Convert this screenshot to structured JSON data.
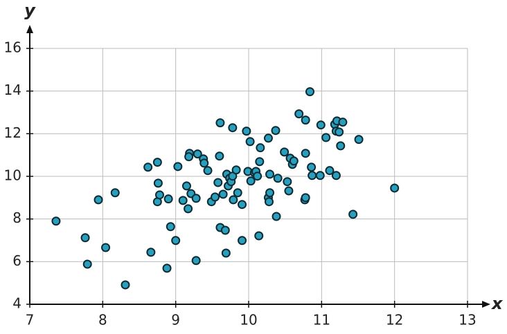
{
  "chart_data": {
    "type": "scatter",
    "x_label": "x",
    "y_label": "y",
    "xlim": [
      7,
      13
    ],
    "ylim": [
      4,
      16
    ],
    "xticks": [
      7,
      8,
      9,
      10,
      11,
      12,
      13
    ],
    "yticks": [
      4,
      6,
      8,
      10,
      12,
      14,
      16
    ],
    "grid": true,
    "color": "#2a9fbd",
    "x": [
      7.36,
      7.76,
      7.79,
      7.94,
      8.04,
      8.17,
      8.31,
      8.62,
      8.66,
      8.75,
      8.76,
      8.75,
      8.78,
      8.88,
      8.9,
      8.93,
      9.0,
      9.03,
      9.1,
      9.15,
      9.17,
      9.19,
      9.18,
      9.21,
      9.28,
      9.28,
      9.3,
      9.38,
      9.39,
      9.44,
      9.49,
      9.54,
      9.58,
      9.6,
      9.61,
      9.61,
      9.65,
      9.68,
      9.69,
      9.7,
      9.72,
      9.74,
      9.76,
      9.78,
      9.78,
      9.79,
      9.83,
      9.85,
      9.91,
      9.91,
      9.97,
      9.99,
      10.02,
      10.03,
      10.08,
      10.1,
      10.12,
      10.14,
      10.15,
      10.16,
      10.27,
      10.27,
      10.28,
      10.29,
      10.29,
      10.37,
      10.38,
      10.4,
      10.49,
      10.53,
      10.55,
      10.57,
      10.6,
      10.62,
      10.69,
      10.77,
      10.78,
      10.78,
      10.78,
      10.84,
      10.86,
      10.87,
      10.98,
      10.99,
      11.06,
      11.11,
      11.18,
      11.2,
      11.2,
      11.21,
      11.24,
      11.26,
      11.29,
      11.43,
      11.51,
      12.0
    ],
    "y": [
      7.9,
      7.12,
      5.88,
      8.9,
      6.66,
      9.23,
      4.91,
      10.43,
      6.44,
      10.66,
      9.68,
      8.81,
      9.13,
      5.69,
      8.94,
      7.64,
      6.99,
      10.46,
      8.87,
      9.55,
      8.48,
      11.08,
      10.92,
      9.19,
      6.05,
      8.97,
      11.05,
      10.82,
      10.62,
      10.27,
      8.81,
      9.03,
      9.71,
      10.95,
      12.51,
      7.6,
      9.16,
      7.47,
      6.4,
      10.1,
      9.55,
      9.91,
      9.75,
      10.01,
      12.28,
      8.9,
      10.3,
      9.23,
      8.68,
      6.99,
      12.12,
      10.23,
      11.63,
      9.78,
      10.17,
      10.23,
      10.01,
      7.21,
      10.69,
      11.34,
      11.79,
      9.0,
      8.81,
      9.23,
      10.1,
      12.15,
      8.12,
      9.91,
      11.14,
      9.75,
      9.32,
      10.85,
      10.56,
      10.72,
      12.93,
      8.9,
      12.64,
      11.08,
      9.0,
      13.97,
      10.43,
      10.04,
      10.04,
      12.41,
      11.82,
      10.27,
      12.44,
      10.04,
      12.12,
      12.6,
      12.08,
      11.43,
      12.54,
      8.22,
      11.73,
      9.45
    ]
  }
}
